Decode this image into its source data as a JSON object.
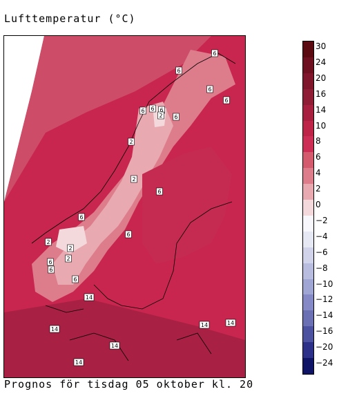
{
  "title": "Lufttemperatur (°C)",
  "caption": "Prognos för tisdag 05 oktober kl. 20",
  "legend": {
    "unit": "°C",
    "ticks": [
      "30",
      "24",
      "20",
      "16",
      "14",
      "10",
      "8",
      "6",
      "4",
      "2",
      "0",
      "−2",
      "−4",
      "−6",
      "−8",
      "−10",
      "−12",
      "−14",
      "−16",
      "−20",
      "−24"
    ],
    "colors": [
      "#5c0a12",
      "#6e1020",
      "#80162c",
      "#8f1d36",
      "#a8203f",
      "#bd2448",
      "#cc2e55",
      "#d45b6e",
      "#dd7d8c",
      "#e9a9b1",
      "#f3d9dc",
      "#f8f8fc",
      "#e6e8f3",
      "#d0d3ea",
      "#b8bde0",
      "#a0a6d4",
      "#8589c6",
      "#6b70b5",
      "#4d52a0",
      "#2c3088",
      "#101466"
    ]
  },
  "map": {
    "contour_labels": [
      "6",
      "6",
      "6",
      "6",
      "6",
      "6",
      "6",
      "2",
      "2",
      "2",
      "2",
      "6",
      "6",
      "6",
      "6",
      "2",
      "2",
      "6",
      "6",
      "6",
      "14",
      "14",
      "14",
      "14",
      "14",
      "14"
    ]
  }
}
